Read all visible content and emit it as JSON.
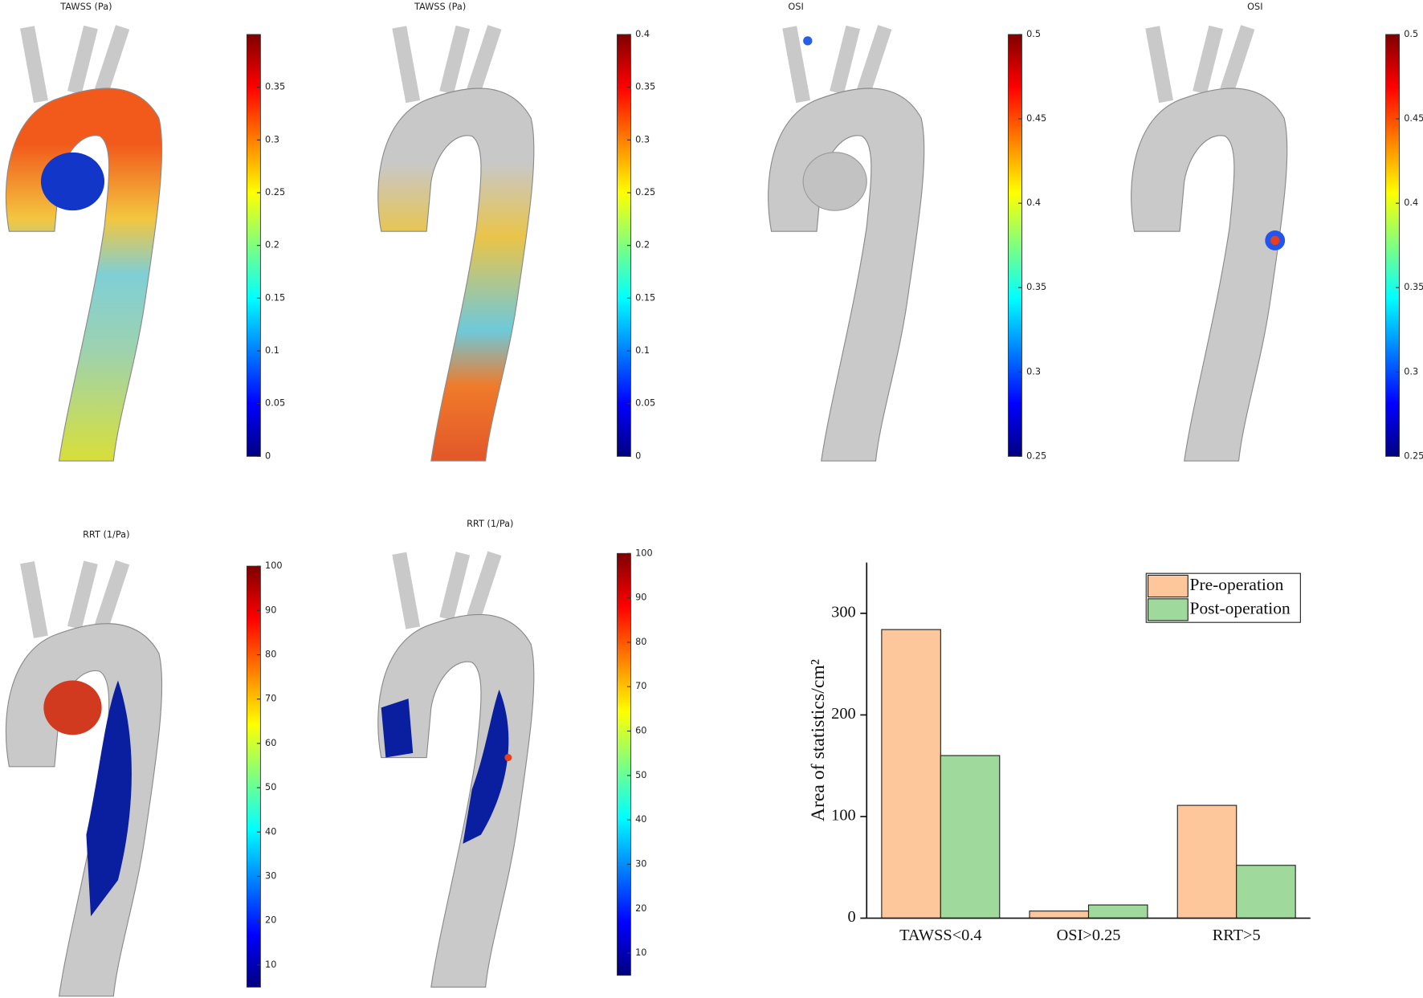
{
  "chart_data": [
    {
      "type": "colorbar",
      "title": "TAWSS (Pa)",
      "colormap": "jet",
      "ylim": [
        0,
        0.4
      ],
      "yticks": [
        0,
        0.05,
        0.1,
        0.15,
        0.2,
        0.25,
        0.3,
        0.35
      ]
    },
    {
      "type": "colorbar",
      "title": "TAWSS (Pa)",
      "colormap": "jet",
      "ylim": [
        0,
        0.4
      ],
      "yticks": [
        0,
        0.05,
        0.1,
        0.15,
        0.2,
        0.25,
        0.3,
        0.35,
        0.4
      ]
    },
    {
      "type": "colorbar",
      "title": "OSI",
      "colormap": "jet",
      "ylim": [
        0.25,
        0.5
      ],
      "yticks": [
        0.25,
        0.3,
        0.35,
        0.4,
        0.45,
        0.5
      ]
    },
    {
      "type": "colorbar",
      "title": "OSI",
      "colormap": "jet",
      "ylim": [
        0.25,
        0.5
      ],
      "yticks": [
        0.25,
        0.3,
        0.35,
        0.4,
        0.45,
        0.5
      ]
    },
    {
      "type": "colorbar",
      "title": "RRT (1/Pa)",
      "colormap": "jet",
      "ylim": [
        5,
        100
      ],
      "yticks": [
        10,
        20,
        30,
        40,
        50,
        60,
        70,
        80,
        90,
        100
      ]
    },
    {
      "type": "colorbar",
      "title": "RRT (1/Pa)",
      "colormap": "jet",
      "ylim": [
        5,
        100
      ],
      "yticks": [
        10,
        20,
        30,
        40,
        50,
        60,
        70,
        80,
        90,
        100
      ]
    },
    {
      "type": "bar",
      "ylabel": "Area of statistics/cm²",
      "categories": [
        "TAWSS<0.4",
        "OSI>0.25",
        "RRT>5"
      ],
      "series": [
        {
          "name": "Pre-operation",
          "color": "#fdc79b",
          "values": [
            284,
            7,
            111
          ]
        },
        {
          "name": "Post-operation",
          "color": "#a0d99c",
          "values": [
            160,
            13,
            52
          ]
        }
      ],
      "ylim": [
        0,
        350
      ],
      "yticks": [
        0,
        100,
        200,
        300
      ],
      "legend": "upper right"
    }
  ]
}
